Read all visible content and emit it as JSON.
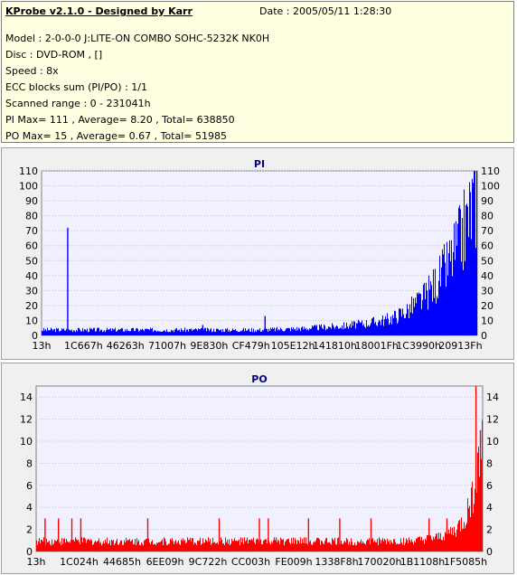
{
  "header": {
    "app_title": "KProbe v2.1.0 - Designed by Karr",
    "date": "Date : 2005/05/11 1:28:30",
    "lines": [
      "Model : 2-0-0-0 J:LITE-ON COMBO SOHC-5232K NK0H",
      "Disc : DVD-ROM ,  []",
      "Speed : 8x",
      "ECC blocks sum (PI/PO) : 1/1",
      "Scanned range : 0 - 231041h",
      "PI Max= 111 , Average= 8.20 , Total= 638850",
      "PO Max= 15 , Average= 0.67 , Total= 51985"
    ]
  },
  "colors": {
    "pi": "#0000ff",
    "po": "#ff0000",
    "plot_bg": "#f0f0ff",
    "grid": "#c0c0c0"
  },
  "chart_data": [
    {
      "type": "bar",
      "title": "PI",
      "ylim": [
        0,
        110
      ],
      "yticks": [
        0,
        10,
        20,
        30,
        40,
        50,
        60,
        70,
        80,
        90,
        100,
        110
      ],
      "xtick_labels": [
        "13h",
        "1C667h",
        "46263h",
        "71007h",
        "9E830h",
        "CF479h",
        "105E12h",
        "141810h",
        "18001Fh",
        "1C3990h",
        "20913Fh"
      ],
      "grid": true,
      "profile": [
        [
          0,
          4
        ],
        [
          0.1,
          4
        ],
        [
          0.2,
          4
        ],
        [
          0.3,
          4
        ],
        [
          0.4,
          4
        ],
        [
          0.5,
          4
        ],
        [
          0.6,
          5
        ],
        [
          0.65,
          6
        ],
        [
          0.7,
          7
        ],
        [
          0.75,
          9
        ],
        [
          0.8,
          12
        ],
        [
          0.84,
          18
        ],
        [
          0.88,
          28
        ],
        [
          0.91,
          40
        ],
        [
          0.94,
          55
        ],
        [
          0.96,
          68
        ],
        [
          0.98,
          85
        ],
        [
          0.99,
          95
        ],
        [
          1.0,
          105
        ]
      ],
      "spikes": [
        [
          0.06,
          72
        ],
        [
          0.513,
          13
        ],
        [
          0.37,
          7
        ],
        [
          0.82,
          10
        ]
      ]
    },
    {
      "type": "bar",
      "title": "PO",
      "ylim": [
        0,
        15
      ],
      "yticks": [
        0,
        2,
        4,
        6,
        8,
        10,
        12,
        14
      ],
      "xtick_labels": [
        "13h",
        "1C024h",
        "44685h",
        "6EE09h",
        "9C722h",
        "CC003h",
        "FE009h",
        "1338F8h",
        "170020h",
        "1B1108h",
        "1F5085h"
      ],
      "grid": true,
      "profile": [
        [
          0,
          1
        ],
        [
          0.85,
          1
        ],
        [
          0.9,
          1.3
        ],
        [
          0.94,
          2
        ],
        [
          0.96,
          3
        ],
        [
          0.97,
          4
        ],
        [
          0.98,
          6
        ],
        [
          0.99,
          8
        ],
        [
          1.0,
          10
        ]
      ],
      "spikes": [
        [
          0.02,
          3
        ],
        [
          0.05,
          3
        ],
        [
          0.08,
          3
        ],
        [
          0.1,
          3
        ],
        [
          0.25,
          3
        ],
        [
          0.41,
          3
        ],
        [
          0.5,
          3
        ],
        [
          0.52,
          3
        ],
        [
          0.61,
          3
        ],
        [
          0.68,
          3
        ],
        [
          0.75,
          3
        ],
        [
          0.88,
          3
        ],
        [
          0.92,
          3
        ],
        [
          0.985,
          15
        ],
        [
          0.995,
          11
        ]
      ]
    }
  ]
}
